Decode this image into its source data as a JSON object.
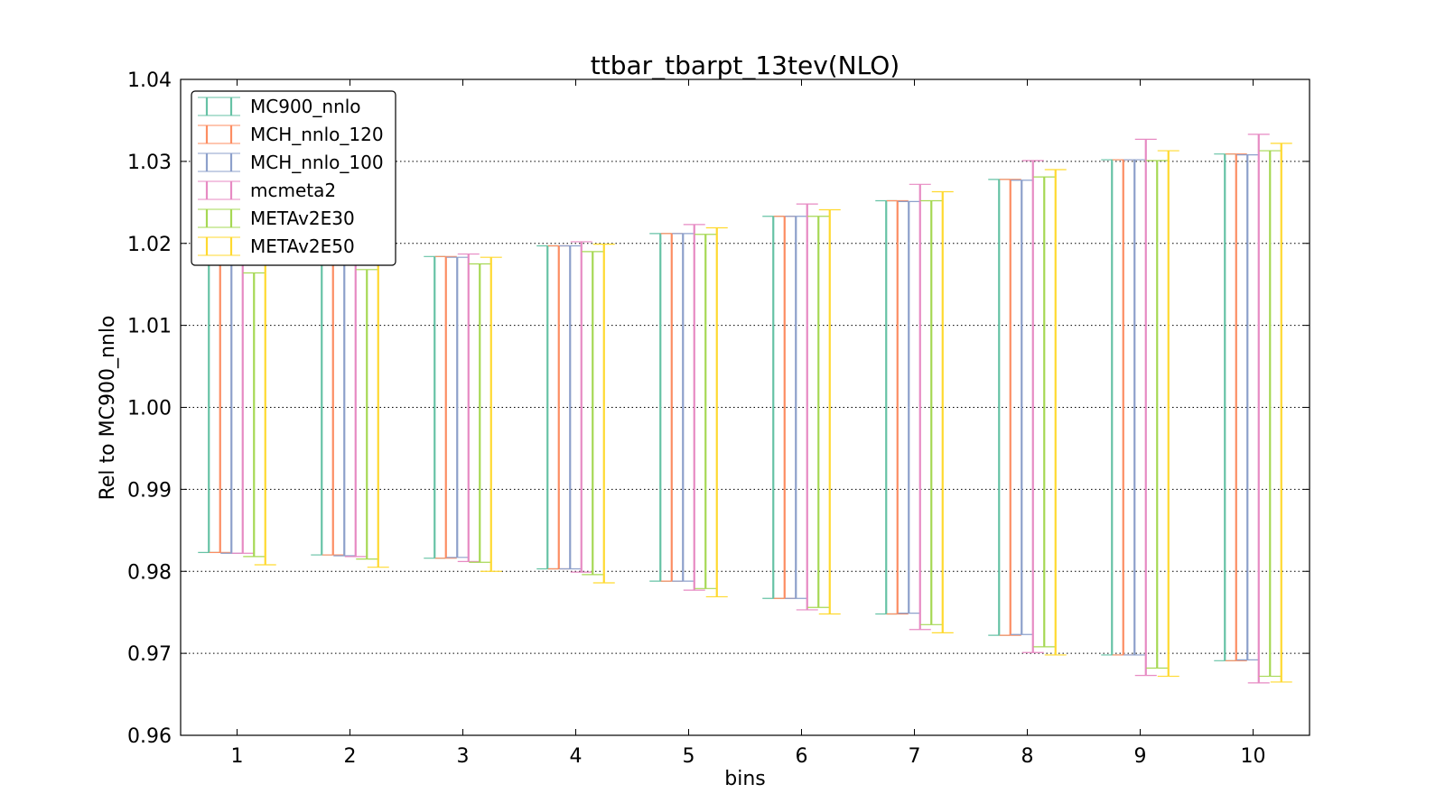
{
  "chart_data": {
    "type": "errorbar",
    "title": "ttbar_tbarpt_13tev(NLO)",
    "xlabel": "bins",
    "ylabel": "Rel to MC900_nnlo",
    "xlim": [
      0.5,
      10.5
    ],
    "ylim": [
      0.96,
      1.04
    ],
    "grid": "y-dotted",
    "legend_position": "top-left",
    "x_ticks": [
      "1",
      "2",
      "3",
      "4",
      "5",
      "6",
      "7",
      "8",
      "9",
      "10"
    ],
    "y_ticks": [
      "0.96",
      "0.97",
      "0.98",
      "0.99",
      "1.00",
      "1.01",
      "1.02",
      "1.03",
      "1.04"
    ],
    "bins": [
      1,
      2,
      3,
      4,
      5,
      6,
      7,
      8,
      9,
      10
    ],
    "series": [
      {
        "name": "MC900_nnlo",
        "color": "#66c2a5",
        "low": [
          0.9823,
          0.982,
          0.9816,
          0.9803,
          0.9788,
          0.9767,
          0.9748,
          0.9722,
          0.9698,
          0.9691
        ],
        "high": [
          1.0177,
          1.018,
          1.0184,
          1.0197,
          1.0212,
          1.0233,
          1.0252,
          1.0278,
          1.0302,
          1.0309
        ]
      },
      {
        "name": "MCH_nnlo_120",
        "color": "#fc8d62",
        "low": [
          0.9823,
          0.982,
          0.9816,
          0.9803,
          0.9788,
          0.9767,
          0.9748,
          0.9722,
          0.9698,
          0.9691
        ],
        "high": [
          1.0177,
          1.018,
          1.0184,
          1.0197,
          1.0212,
          1.0233,
          1.0252,
          1.0278,
          1.0302,
          1.0309
        ]
      },
      {
        "name": "MCH_nnlo_100",
        "color": "#8da0cb",
        "low": [
          0.9822,
          0.9819,
          0.9817,
          0.9803,
          0.9788,
          0.9767,
          0.9749,
          0.9723,
          0.9698,
          0.9692
        ],
        "high": [
          1.0178,
          1.0181,
          1.0183,
          1.0197,
          1.0212,
          1.0233,
          1.0251,
          1.0277,
          1.0302,
          1.0308
        ]
      },
      {
        "name": "mcmeta2",
        "color": "#e78ac3",
        "low": [
          0.9822,
          0.9818,
          0.9812,
          0.9799,
          0.9777,
          0.9753,
          0.9729,
          0.9701,
          0.9673,
          0.9664
        ],
        "high": [
          1.0178,
          1.0182,
          1.0187,
          1.0202,
          1.0223,
          1.0248,
          1.0272,
          1.0301,
          1.0327,
          1.0333
        ]
      },
      {
        "name": "METAv2E30",
        "color": "#a6d854",
        "low": [
          0.9818,
          0.9815,
          0.9811,
          0.9796,
          0.9779,
          0.9756,
          0.9735,
          0.9708,
          0.9682,
          0.9672
        ],
        "high": [
          1.0164,
          1.0168,
          1.0175,
          1.019,
          1.0211,
          1.0233,
          1.0252,
          1.0281,
          1.0301,
          1.0313
        ]
      },
      {
        "name": "METAv2E50",
        "color": "#ffd92f",
        "low": [
          0.9808,
          0.9805,
          0.98,
          0.9786,
          0.9769,
          0.9748,
          0.9725,
          0.9698,
          0.9672,
          0.9665
        ],
        "high": [
          1.0178,
          1.0182,
          1.0183,
          1.0199,
          1.0219,
          1.0241,
          1.0263,
          1.029,
          1.0313,
          1.0322
        ]
      }
    ]
  }
}
